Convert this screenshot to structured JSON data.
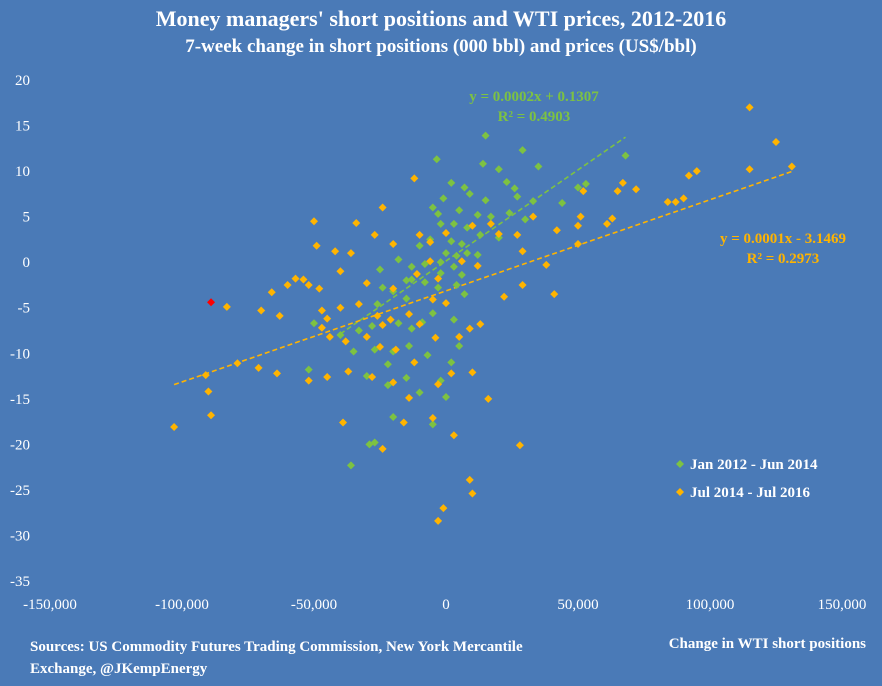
{
  "title": "Money managers' short positions and WTI prices, 2012-2016",
  "subtitle": "7-week change in short positions (000 bbl) and prices (US$/bbl)",
  "source": "Sources: US Commodity Futures Trading Commission, New York Mercantile Exchange, @JKempEnergy",
  "colors": {
    "background": "#4a7ab7",
    "green": "#7dc242",
    "orange": "#ffb400",
    "highlight": "#ff0000",
    "text": "#ffffff"
  },
  "chart_data": {
    "type": "scatter",
    "title": "Money managers' short positions and WTI prices, 2012-2016",
    "xlabel": "Change in WTI short positions",
    "ylabel": "",
    "xlim": [
      -150000,
      150000
    ],
    "ylim": [
      -35,
      20
    ],
    "x_ticks": [
      -150000,
      -100000,
      -50000,
      0,
      50000,
      100000,
      150000
    ],
    "x_tick_labels": [
      "-150,000",
      "-100,000",
      "-50,000",
      "0",
      "50,000",
      "100,000",
      "150,000"
    ],
    "y_ticks": [
      20,
      15,
      10,
      5,
      0,
      -5,
      -10,
      -15,
      -20,
      -25,
      -30,
      -35
    ],
    "grid": false,
    "legend_position": "bottom-right",
    "series": [
      {
        "name": "Jan 2012 - Jun 2014",
        "color": "#7dc242",
        "trendline": {
          "slope": 0.0002,
          "intercept": 0.1307,
          "x_range": [
            -40000,
            68000
          ],
          "equation": "y = 0.0002x + 0.1307",
          "r2": "R² = 0.4903"
        },
        "points": [
          [
            -3500,
            11.3
          ],
          [
            15000,
            13.9
          ],
          [
            29000,
            12.3
          ],
          [
            68000,
            11.7
          ],
          [
            35000,
            10.5
          ],
          [
            20000,
            10.2
          ],
          [
            14000,
            10.8
          ],
          [
            50000,
            8.2
          ],
          [
            53000,
            8.6
          ],
          [
            23000,
            8.8
          ],
          [
            26000,
            8.1
          ],
          [
            7000,
            8.2
          ],
          [
            2000,
            8.7
          ],
          [
            9000,
            7.5
          ],
          [
            15000,
            6.8
          ],
          [
            27000,
            7.2
          ],
          [
            33000,
            6.7
          ],
          [
            44000,
            6.5
          ],
          [
            -1000,
            7.0
          ],
          [
            -5000,
            6.0
          ],
          [
            -3000,
            5.3
          ],
          [
            5000,
            5.7
          ],
          [
            12000,
            5.2
          ],
          [
            17000,
            5.0
          ],
          [
            24000,
            5.4
          ],
          [
            30000,
            4.7
          ],
          [
            -2000,
            4.2
          ],
          [
            3000,
            4.2
          ],
          [
            8000,
            3.8
          ],
          [
            13000,
            3.0
          ],
          [
            20000,
            2.7
          ],
          [
            2000,
            2.3
          ],
          [
            6000,
            2.0
          ],
          [
            -6000,
            2.5
          ],
          [
            -10000,
            1.8
          ],
          [
            0,
            1.0
          ],
          [
            4000,
            0.7
          ],
          [
            8000,
            1.0
          ],
          [
            -2000,
            0.0
          ],
          [
            3000,
            -0.5
          ],
          [
            12000,
            0.8
          ],
          [
            -8000,
            -0.2
          ],
          [
            -13000,
            -0.5
          ],
          [
            -18000,
            0.3
          ],
          [
            -25000,
            -0.8
          ],
          [
            -2000,
            -1.2
          ],
          [
            6000,
            -1.4
          ],
          [
            -13000,
            -1.9
          ],
          [
            -8000,
            -2.2
          ],
          [
            -3000,
            -2.8
          ],
          [
            4000,
            -2.5
          ],
          [
            -20000,
            -3.2
          ],
          [
            -15000,
            -2.0
          ],
          [
            -24000,
            -2.8
          ],
          [
            7000,
            -3.5
          ],
          [
            -15000,
            -4.0
          ],
          [
            -26000,
            -4.6
          ],
          [
            -5000,
            -5.6
          ],
          [
            3000,
            -6.3
          ],
          [
            -18000,
            -6.7
          ],
          [
            -9000,
            -6.6
          ],
          [
            -13000,
            -7.3
          ],
          [
            -28000,
            -7.0
          ],
          [
            -33000,
            -7.5
          ],
          [
            -50000,
            -6.7
          ],
          [
            -40000,
            -8.0
          ],
          [
            -35000,
            -9.8
          ],
          [
            -27000,
            -9.6
          ],
          [
            -20000,
            -9.8
          ],
          [
            -14000,
            -9.2
          ],
          [
            -7000,
            -10.2
          ],
          [
            5000,
            -9.2
          ],
          [
            2000,
            -11.0
          ],
          [
            -22000,
            -11.2
          ],
          [
            -30000,
            -12.5
          ],
          [
            -22000,
            -13.5
          ],
          [
            -15000,
            -12.7
          ],
          [
            -2000,
            -13.0
          ],
          [
            -52000,
            -11.8
          ],
          [
            -20000,
            -17.0
          ],
          [
            -5000,
            -17.8
          ],
          [
            -29000,
            -20.0
          ],
          [
            -27000,
            -19.8
          ],
          [
            -36000,
            -22.3
          ],
          [
            -10000,
            -14.3
          ],
          [
            0,
            -14.8
          ]
        ]
      },
      {
        "name": "Jul 2014 - Jul 2016",
        "color": "#ffb400",
        "trendline": {
          "slope": 0.0001,
          "intercept": -3.1469,
          "x_range": [
            -103000,
            131000
          ],
          "equation": "y = 0.0001x - 3.1469",
          "r2": "R² = 0.2973"
        },
        "points": [
          [
            115000,
            17.0
          ],
          [
            125000,
            13.2
          ],
          [
            131000,
            10.5
          ],
          [
            115000,
            10.2
          ],
          [
            95000,
            10.0
          ],
          [
            92000,
            9.5
          ],
          [
            67000,
            8.7
          ],
          [
            72000,
            8.0
          ],
          [
            65000,
            7.8
          ],
          [
            52000,
            7.8
          ],
          [
            90000,
            7.0
          ],
          [
            87000,
            6.6
          ],
          [
            84000,
            6.6
          ],
          [
            51000,
            5.0
          ],
          [
            50000,
            4.0
          ],
          [
            61000,
            4.2
          ],
          [
            63000,
            4.8
          ],
          [
            -50000,
            4.5
          ],
          [
            -34000,
            4.3
          ],
          [
            -24000,
            6.0
          ],
          [
            -12000,
            9.2
          ],
          [
            -27000,
            3.0
          ],
          [
            -49000,
            1.8
          ],
          [
            -42000,
            1.2
          ],
          [
            -36000,
            1.0
          ],
          [
            -20000,
            2.0
          ],
          [
            -10000,
            3.0
          ],
          [
            -6000,
            2.2
          ],
          [
            0,
            3.2
          ],
          [
            10000,
            4.0
          ],
          [
            17000,
            4.2
          ],
          [
            27000,
            3.0
          ],
          [
            33000,
            5.0
          ],
          [
            42000,
            3.5
          ],
          [
            50000,
            2.0
          ],
          [
            -57000,
            -1.8
          ],
          [
            -60000,
            -2.5
          ],
          [
            -66000,
            -3.3
          ],
          [
            -54000,
            -1.9
          ],
          [
            -52000,
            -2.5
          ],
          [
            -48000,
            -2.9
          ],
          [
            -40000,
            -1.0
          ],
          [
            -30000,
            -2.3
          ],
          [
            -20000,
            -2.9
          ],
          [
            -11000,
            -1.3
          ],
          [
            -6000,
            0.1
          ],
          [
            -3000,
            -1.8
          ],
          [
            6000,
            0.1
          ],
          [
            12000,
            -0.4
          ],
          [
            20000,
            3.1
          ],
          [
            29000,
            1.2
          ],
          [
            38000,
            -0.3
          ],
          [
            -83000,
            -4.9
          ],
          [
            -70000,
            -5.3
          ],
          [
            -63000,
            -5.9
          ],
          [
            -47000,
            -5.3
          ],
          [
            -45000,
            -6.2
          ],
          [
            -40000,
            -5.0
          ],
          [
            -33000,
            -4.6
          ],
          [
            -26000,
            -5.9
          ],
          [
            -24000,
            -6.9
          ],
          [
            -21000,
            -6.3
          ],
          [
            -14000,
            -5.7
          ],
          [
            -5000,
            -4.1
          ],
          [
            0,
            -4.5
          ],
          [
            -10000,
            -6.8
          ],
          [
            -47000,
            -7.2
          ],
          [
            -44000,
            -8.2
          ],
          [
            -38000,
            -8.7
          ],
          [
            -30000,
            -8.2
          ],
          [
            -25000,
            -9.3
          ],
          [
            -19000,
            -9.6
          ],
          [
            -12000,
            -11.0
          ],
          [
            -4000,
            -8.3
          ],
          [
            5000,
            -8.2
          ],
          [
            9000,
            -7.3
          ],
          [
            13000,
            -6.8
          ],
          [
            22000,
            -3.8
          ],
          [
            29000,
            -2.5
          ],
          [
            41000,
            -3.5
          ],
          [
            -79000,
            -11.1
          ],
          [
            -71000,
            -11.6
          ],
          [
            -64000,
            -12.2
          ],
          [
            -52000,
            -13.0
          ],
          [
            -45000,
            -12.6
          ],
          [
            -37000,
            -12.0
          ],
          [
            -28000,
            -12.6
          ],
          [
            -20000,
            -13.2
          ],
          [
            -14000,
            -14.9
          ],
          [
            -3000,
            -13.4
          ],
          [
            2000,
            -12.2
          ],
          [
            10000,
            -12.1
          ],
          [
            16000,
            -15.0
          ],
          [
            -91000,
            -12.4
          ],
          [
            -90000,
            -14.2
          ],
          [
            -89000,
            -16.8
          ],
          [
            -103000,
            -18.1
          ],
          [
            -39000,
            -17.6
          ],
          [
            -24000,
            -20.5
          ],
          [
            -16000,
            -17.6
          ],
          [
            -5000,
            -17.1
          ],
          [
            3000,
            -19.0
          ],
          [
            28000,
            -20.1
          ],
          [
            9000,
            -23.9
          ],
          [
            10000,
            -25.4
          ],
          [
            -1000,
            -27.0
          ],
          [
            -3000,
            -28.4
          ]
        ]
      },
      {
        "name": "",
        "color": "#ff0000",
        "points": [
          [
            -89000,
            -4.4
          ]
        ]
      }
    ]
  }
}
